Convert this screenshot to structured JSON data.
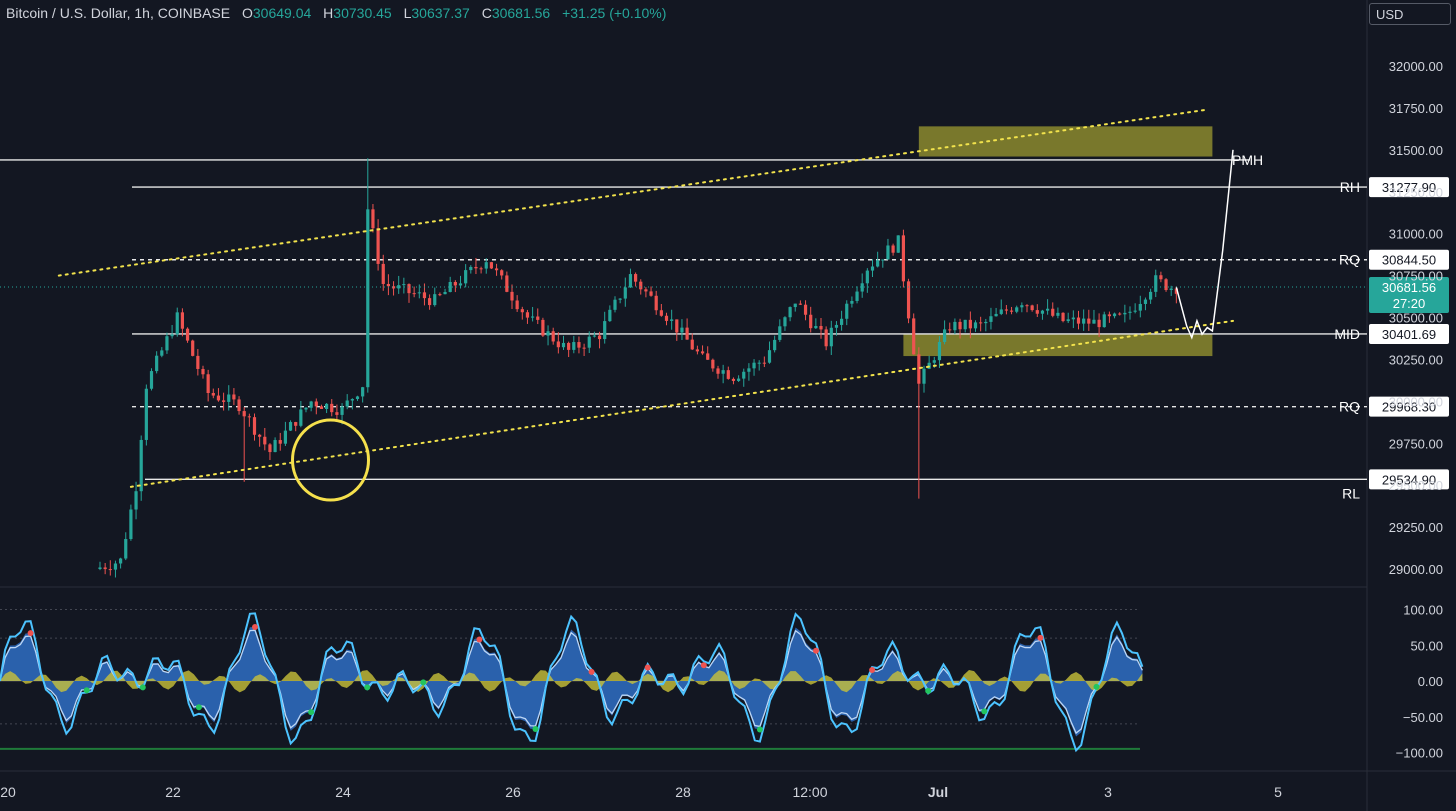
{
  "header": {
    "symbol": "Bitcoin / U.S. Dollar, 1h, COINBASE",
    "open_label": "O",
    "open": "30649.04",
    "high_label": "H",
    "high": "30730.45",
    "low_label": "L",
    "low": "30637.37",
    "close_label": "C",
    "close": "30681.56",
    "change": "+31.25 (+0.10%)"
  },
  "currency": "USD",
  "colors": {
    "background": "#131722",
    "up": "#26a69a",
    "down": "#ef5350",
    "trendline": "#f2e34c",
    "zone": "#8c8a2e",
    "osc_fill": "#2f6fc4",
    "osc_line": "#4cc3ff"
  },
  "chart_data": [
    {
      "type": "candlestick",
      "y_ticks": [
        "32000.00",
        "31750.00",
        "31500.00",
        "31250.00",
        "31000.00",
        "30750.00",
        "30500.00",
        "30250.00",
        "30000.00",
        "29750.00",
        "29500.00",
        "29250.00",
        "29000.00"
      ],
      "x_ticks": [
        "20",
        "22",
        "24",
        "26",
        "28",
        "12:00",
        "Jul",
        "3",
        "5"
      ],
      "ylim": [
        28900,
        32250
      ],
      "current_price": {
        "value": 30681.56,
        "label": "30681.56",
        "countdown": "27:20"
      },
      "levels": [
        {
          "name": "PMH",
          "price": 31440,
          "style": "solid",
          "value_label": ""
        },
        {
          "name": "RH",
          "price": 31277.9,
          "style": "solid",
          "value_label": "31277.90"
        },
        {
          "name": "RQ",
          "price": 30844.5,
          "style": "dashed",
          "value_label": "30844.50"
        },
        {
          "name": "MID",
          "price": 30401.69,
          "style": "solid",
          "value_label": "30401.69"
        },
        {
          "name": "RQ",
          "price": 29968.3,
          "style": "dashed",
          "value_label": "29968.30"
        },
        {
          "name": "RL",
          "price": 29534.9,
          "style": "solid",
          "value_label": "29534.90"
        }
      ],
      "key_prices": [
        {
          "t": 0,
          "p": 29000
        },
        {
          "t": 5,
          "p": 29050
        },
        {
          "t": 8,
          "p": 29500
        },
        {
          "t": 10,
          "p": 30100
        },
        {
          "t": 16,
          "p": 30500
        },
        {
          "t": 22,
          "p": 30050
        },
        {
          "t": 28,
          "p": 29980
        },
        {
          "t": 34,
          "p": 29700
        },
        {
          "t": 42,
          "p": 30000
        },
        {
          "t": 48,
          "p": 29950
        },
        {
          "t": 52,
          "p": 30100
        },
        {
          "t": 53,
          "p": 31150
        },
        {
          "t": 56,
          "p": 30700
        },
        {
          "t": 66,
          "p": 30600
        },
        {
          "t": 76,
          "p": 30850
        },
        {
          "t": 84,
          "p": 30500
        },
        {
          "t": 92,
          "p": 30300
        },
        {
          "t": 98,
          "p": 30400
        },
        {
          "t": 104,
          "p": 30750
        },
        {
          "t": 110,
          "p": 30550
        },
        {
          "t": 118,
          "p": 30250
        },
        {
          "t": 124,
          "p": 30150
        },
        {
          "t": 130,
          "p": 30250
        },
        {
          "t": 136,
          "p": 30600
        },
        {
          "t": 142,
          "p": 30350
        },
        {
          "t": 150,
          "p": 30800
        },
        {
          "t": 156,
          "p": 30950
        },
        {
          "t": 160,
          "p": 30100
        },
        {
          "t": 166,
          "p": 30450
        },
        {
          "t": 172,
          "p": 30450
        },
        {
          "t": 180,
          "p": 30600
        },
        {
          "t": 188,
          "p": 30480
        },
        {
          "t": 194,
          "p": 30470
        },
        {
          "t": 200,
          "p": 30500
        },
        {
          "t": 206,
          "p": 30720
        },
        {
          "t": 209,
          "p": 30681
        }
      ],
      "xlim_candles": [
        0,
        250
      ],
      "trendlines": [
        {
          "p1": {
            "t": -8,
            "p": 30750
          },
          "p2": {
            "t": 215,
            "p": 31740
          },
          "style": "dotted"
        },
        {
          "p1": {
            "t": 6,
            "p": 29490
          },
          "p2": {
            "t": 220,
            "p": 30480
          },
          "style": "dotted"
        }
      ],
      "zones": [
        {
          "t1": 159,
          "t2": 216,
          "p_top": 31640,
          "p_bottom": 31460
        },
        {
          "t1": 156,
          "t2": 216,
          "p_top": 30400,
          "p_bottom": 30270
        }
      ],
      "projection": [
        {
          "t": 209,
          "p": 30680
        },
        {
          "t": 211,
          "p": 30450
        },
        {
          "t": 212,
          "p": 30380
        },
        {
          "t": 213,
          "p": 30480
        },
        {
          "t": 214,
          "p": 30400
        },
        {
          "t": 215,
          "p": 30440
        },
        {
          "t": 216,
          "p": 30420
        },
        {
          "t": 218,
          "p": 30900
        },
        {
          "t": 219,
          "p": 31200
        },
        {
          "t": 220,
          "p": 31500
        }
      ],
      "highlight_circle": {
        "t": 30,
        "p": 29650
      }
    },
    {
      "type": "oscillator",
      "y_ticks": [
        "100.00",
        "50.00",
        "0.00",
        "−50.00",
        "−100.00"
      ],
      "ylim": [
        -110,
        110
      ],
      "guides": [
        100,
        60,
        0,
        -60,
        -95
      ]
    }
  ]
}
